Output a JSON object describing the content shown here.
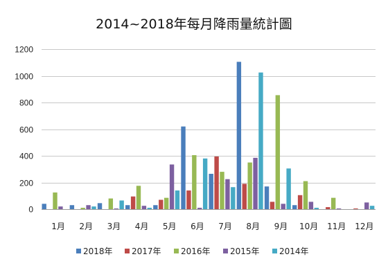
{
  "chart_data": {
    "type": "bar",
    "title": "2014~2018年每月降雨量統計圖",
    "xlabel": "",
    "ylabel": "",
    "ylim": [
      0,
      1200
    ],
    "yticks": [
      0,
      200,
      400,
      600,
      800,
      1000,
      1200
    ],
    "grid": true,
    "legend_position": "bottom",
    "categories": [
      "1月",
      "2月",
      "3月",
      "4月",
      "5月",
      "6月",
      "7月",
      "8月",
      "9月",
      "10月",
      "11月",
      "12月"
    ],
    "series": [
      {
        "name": "2018年",
        "color": "#4a7ebb",
        "values": [
          40,
          30,
          45,
          30,
          30,
          620,
          265,
          1105,
          170,
          30,
          0,
          0
        ]
      },
      {
        "name": "2017年",
        "color": "#be4b48",
        "values": [
          0,
          0,
          0,
          95,
          70,
          140,
          395,
          190,
          55,
          105,
          15,
          5
        ]
      },
      {
        "name": "2016年",
        "color": "#98b954",
        "values": [
          125,
          10,
          80,
          175,
          85,
          405,
          280,
          350,
          855,
          210,
          85,
          0
        ]
      },
      {
        "name": "2015年",
        "color": "#7d60a0",
        "values": [
          20,
          30,
          5,
          25,
          335,
          10,
          225,
          385,
          40,
          55,
          5,
          50
        ]
      },
      {
        "name": "2014年",
        "color": "#46aac5",
        "values": [
          0,
          20,
          65,
          10,
          140,
          380,
          165,
          1025,
          305,
          10,
          0,
          25
        ]
      }
    ]
  }
}
